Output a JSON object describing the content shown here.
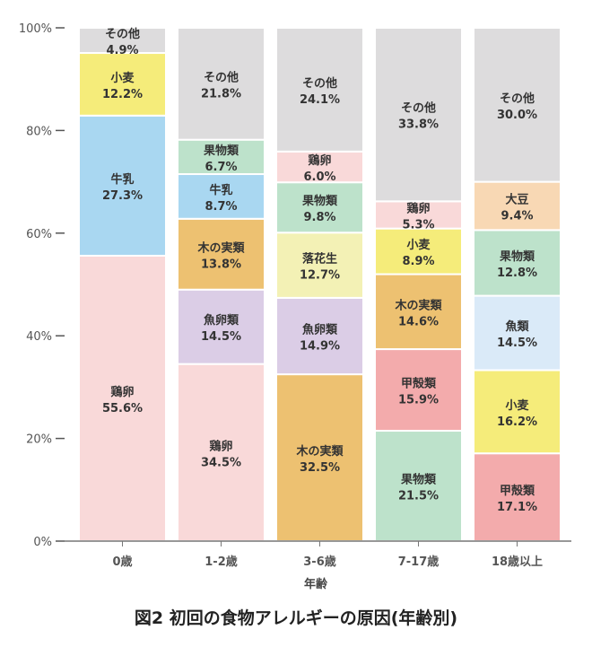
{
  "caption": "図2 初回の食物アレルギーの原因(年齢別)",
  "chart_data": {
    "type": "bar",
    "stacked": true,
    "xlabel": "年齢",
    "ylabel": "",
    "ylim": [
      0,
      100
    ],
    "yticks": [
      {
        "value": 0,
        "label": "0%"
      },
      {
        "value": 20,
        "label": "20%"
      },
      {
        "value": 40,
        "label": "40%"
      },
      {
        "value": 60,
        "label": "60%"
      },
      {
        "value": 80,
        "label": "80%"
      },
      {
        "value": 100,
        "label": "100%"
      }
    ],
    "colors": {
      "鶏卵": "#f9d9d9",
      "牛乳": "#a9d7f1",
      "小麦": "#f5ec7a",
      "その他": "#dddcdd",
      "魚卵類": "#dbcde6",
      "木の実類": "#edc171",
      "果物類": "#bde2cb",
      "落花生": "#f3f1b5",
      "甲殻類": "#f3abac",
      "魚類": "#daeaf8",
      "大豆": "#f8d8b4"
    },
    "categories": [
      "0歳",
      "1-2歳",
      "3-6歳",
      "7-17歳",
      "18歳以上"
    ],
    "stacks": [
      [
        {
          "name": "鶏卵",
          "value": 55.6,
          "label": "55.6%"
        },
        {
          "name": "牛乳",
          "value": 27.3,
          "label": "27.3%"
        },
        {
          "name": "小麦",
          "value": 12.2,
          "label": "12.2%"
        },
        {
          "name": "その他",
          "value": 4.9,
          "label": "4.9%"
        }
      ],
      [
        {
          "name": "鶏卵",
          "value": 34.5,
          "label": "34.5%"
        },
        {
          "name": "魚卵類",
          "value": 14.5,
          "label": "14.5%"
        },
        {
          "name": "木の実類",
          "value": 13.8,
          "label": "13.8%"
        },
        {
          "name": "牛乳",
          "value": 8.7,
          "label": "8.7%"
        },
        {
          "name": "果物類",
          "value": 6.7,
          "label": "6.7%"
        },
        {
          "name": "その他",
          "value": 21.8,
          "label": "21.8%"
        }
      ],
      [
        {
          "name": "木の実類",
          "value": 32.5,
          "label": "32.5%"
        },
        {
          "name": "魚卵類",
          "value": 14.9,
          "label": "14.9%"
        },
        {
          "name": "落花生",
          "value": 12.7,
          "label": "12.7%"
        },
        {
          "name": "果物類",
          "value": 9.8,
          "label": "9.8%"
        },
        {
          "name": "鶏卵",
          "value": 6.0,
          "label": "6.0%"
        },
        {
          "name": "その他",
          "value": 24.1,
          "label": "24.1%"
        }
      ],
      [
        {
          "name": "果物類",
          "value": 21.5,
          "label": "21.5%"
        },
        {
          "name": "甲殻類",
          "value": 15.9,
          "label": "15.9%"
        },
        {
          "name": "木の実類",
          "value": 14.6,
          "label": "14.6%"
        },
        {
          "name": "小麦",
          "value": 8.9,
          "label": "8.9%"
        },
        {
          "name": "鶏卵",
          "value": 5.3,
          "label": "5.3%"
        },
        {
          "name": "その他",
          "value": 33.8,
          "label": "33.8%"
        }
      ],
      [
        {
          "name": "甲殻類",
          "value": 17.1,
          "label": "17.1%"
        },
        {
          "name": "小麦",
          "value": 16.2,
          "label": "16.2%"
        },
        {
          "name": "魚類",
          "value": 14.5,
          "label": "14.5%"
        },
        {
          "name": "果物類",
          "value": 12.8,
          "label": "12.8%"
        },
        {
          "name": "大豆",
          "value": 9.4,
          "label": "9.4%"
        },
        {
          "name": "その他",
          "value": 30.0,
          "label": "30.0%"
        }
      ]
    ]
  }
}
